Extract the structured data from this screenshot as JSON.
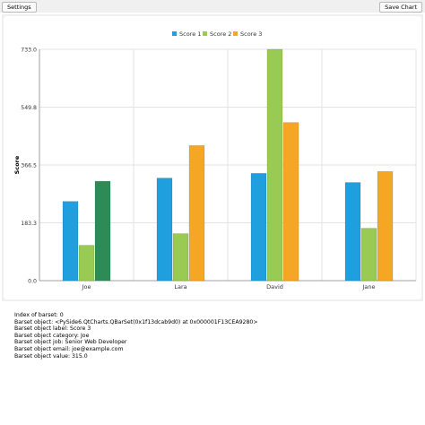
{
  "toolbar": {
    "settings_label": "Settings",
    "save_label": "Save Chart"
  },
  "chart_data": {
    "type": "bar",
    "categories": [
      "Joe",
      "Lara",
      "David",
      "Jane"
    ],
    "series": [
      {
        "name": "Score 1",
        "values": [
          251,
          325,
          340,
          311
        ],
        "color": "#209fdf"
      },
      {
        "name": "Score 2",
        "values": [
          112,
          149,
          733,
          166
        ],
        "color": "#99ca53"
      },
      {
        "name": "Score 3",
        "values": [
          315,
          428,
          501,
          346
        ],
        "color": "#f6a625"
      }
    ],
    "highlight": {
      "series": 2,
      "category": 0,
      "color": "#2e8b57"
    },
    "ylabel": "Score",
    "xlabel": "",
    "ylim": [
      0.0,
      733.0
    ],
    "yticks": [
      "0.0",
      "183.3",
      "366.5",
      "549.8",
      "733.0"
    ],
    "legend_position": "top-center",
    "grid": true
  },
  "info": {
    "lines": [
      "Index of barset: 0",
      "Barset object: <PySide6.QtCharts.QBarSet(0x1f13dcab9d0) at 0x000001F13CEA9280>",
      "Barset object label: Score 3",
      "Barset object category: Joe",
      "Barset object job: Senior Web Developer",
      "Barset object email: joe@example.com",
      "Barset object value: 315.0"
    ]
  }
}
